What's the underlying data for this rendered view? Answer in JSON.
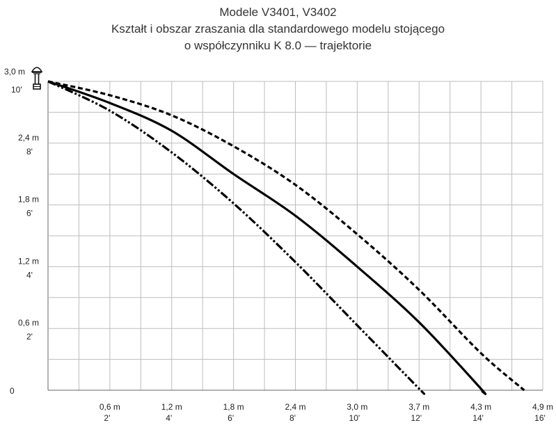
{
  "title_lines": [
    "Modele V3401, V3402",
    "Kształt i obszar zraszania dla standardowego modelu stojącego",
    "o współczynniku K 8.0 — trajektorie"
  ],
  "icons": {
    "sprinkler": "sprinkler-head-icon"
  },
  "chart_data": {
    "type": "line",
    "title": "Modele V3401, V3402 / Kształt i obszar zraszania dla standardowego modelu stojącego o współczynniku K 8.0 — trajektorie",
    "xlabel": "",
    "ylabel": "",
    "xlim": [
      0,
      16
    ],
    "ylim": [
      0,
      10
    ],
    "grid": true,
    "x_ticks_ft": [
      2,
      4,
      6,
      8,
      10,
      12,
      14,
      16
    ],
    "x_tick_labels_m": [
      "0,6 m",
      "1,2 m",
      "1,8 m",
      "2,4 m",
      "3,0 m",
      "3,7 m",
      "4,3 m",
      "4,9 m"
    ],
    "x_tick_labels_ft": [
      "2'",
      "4'",
      "6'",
      "8'",
      "10'",
      "12'",
      "14'",
      "16'"
    ],
    "y_ticks_ft": [
      0,
      2,
      4,
      6,
      8,
      10
    ],
    "y_tick_labels_m": [
      "",
      "0,6 m",
      "1,2 m",
      "1,8 m",
      "2,4 m",
      "3,0 m"
    ],
    "y_tick_labels_ft": [
      "0",
      "2'",
      "4'",
      "6'",
      "8'",
      "10'"
    ],
    "series": [
      {
        "style": "dashed",
        "x": [
          0,
          2,
          4,
          6,
          8,
          10,
          12,
          14,
          15.4
        ],
        "y": [
          10,
          9.55,
          8.9,
          7.9,
          6.65,
          5.05,
          3.25,
          1.2,
          0
        ]
      },
      {
        "style": "solid",
        "x": [
          0,
          2,
          4,
          6,
          8,
          10,
          12,
          14,
          14.0
        ],
        "y": [
          10,
          9.3,
          8.4,
          7.0,
          5.65,
          4.0,
          2.2,
          0.05,
          0
        ]
      },
      {
        "style": "dash-dot-dot",
        "x": [
          0,
          2,
          4,
          6,
          8,
          10,
          12,
          12.05
        ],
        "y": [
          10,
          9.05,
          7.7,
          6.05,
          4.15,
          2.1,
          0.05,
          0
        ]
      }
    ]
  }
}
